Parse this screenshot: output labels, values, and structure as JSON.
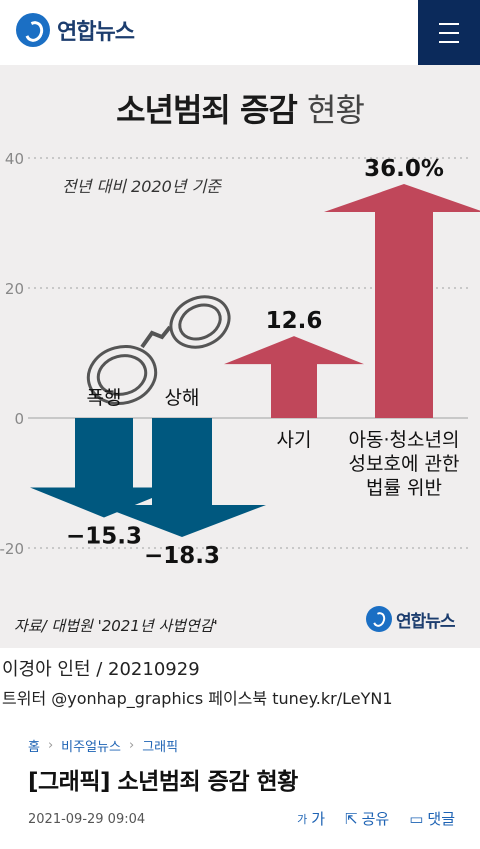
{
  "header": {
    "logo_text": "연합뉴스",
    "menu_icon": "hamburger-icon"
  },
  "graphic": {
    "title_bold": "소년범죄 증감",
    "title_light": "현황",
    "subtitle": "전년 대비 2020년 기준",
    "source": "자료/ 대법원 '2021년 사법연감'",
    "logo_text": "연합뉴스"
  },
  "chart_data": {
    "type": "bar",
    "categories": [
      "폭행",
      "상해",
      "사기",
      "아동·청소년의 성보호에 관한 법률 위반"
    ],
    "category_lines": [
      [
        "폭행"
      ],
      [
        "상해"
      ],
      [
        "사기"
      ],
      [
        "아동·청소년의",
        "성보호에 관한",
        "법률 위반"
      ]
    ],
    "values": [
      -15.3,
      -18.3,
      12.6,
      36.0
    ],
    "value_labels": [
      "−15.3",
      "−18.3",
      "12.6",
      "36.0%"
    ],
    "ylim": [
      -20,
      40
    ],
    "yticks": [
      40,
      20,
      0,
      -20
    ],
    "colors": {
      "negative": "#00587f",
      "positive": "#c0475a",
      "axis": "#bbbbbb"
    }
  },
  "byline": {
    "author": "이경아 인턴 / 20210929",
    "social": "트위터 @yonhap_graphics  페이스북 tuney.kr/LeYN1"
  },
  "breadcrumb": [
    "홈",
    "비주얼뉴스",
    "그래픽"
  ],
  "article": {
    "title": "[그래픽] 소년범죄 증감 현황",
    "date": "2021-09-29 09:04"
  },
  "tools": {
    "font_small": "가",
    "font_large": "가",
    "share": "공유",
    "comment": "댓글"
  }
}
